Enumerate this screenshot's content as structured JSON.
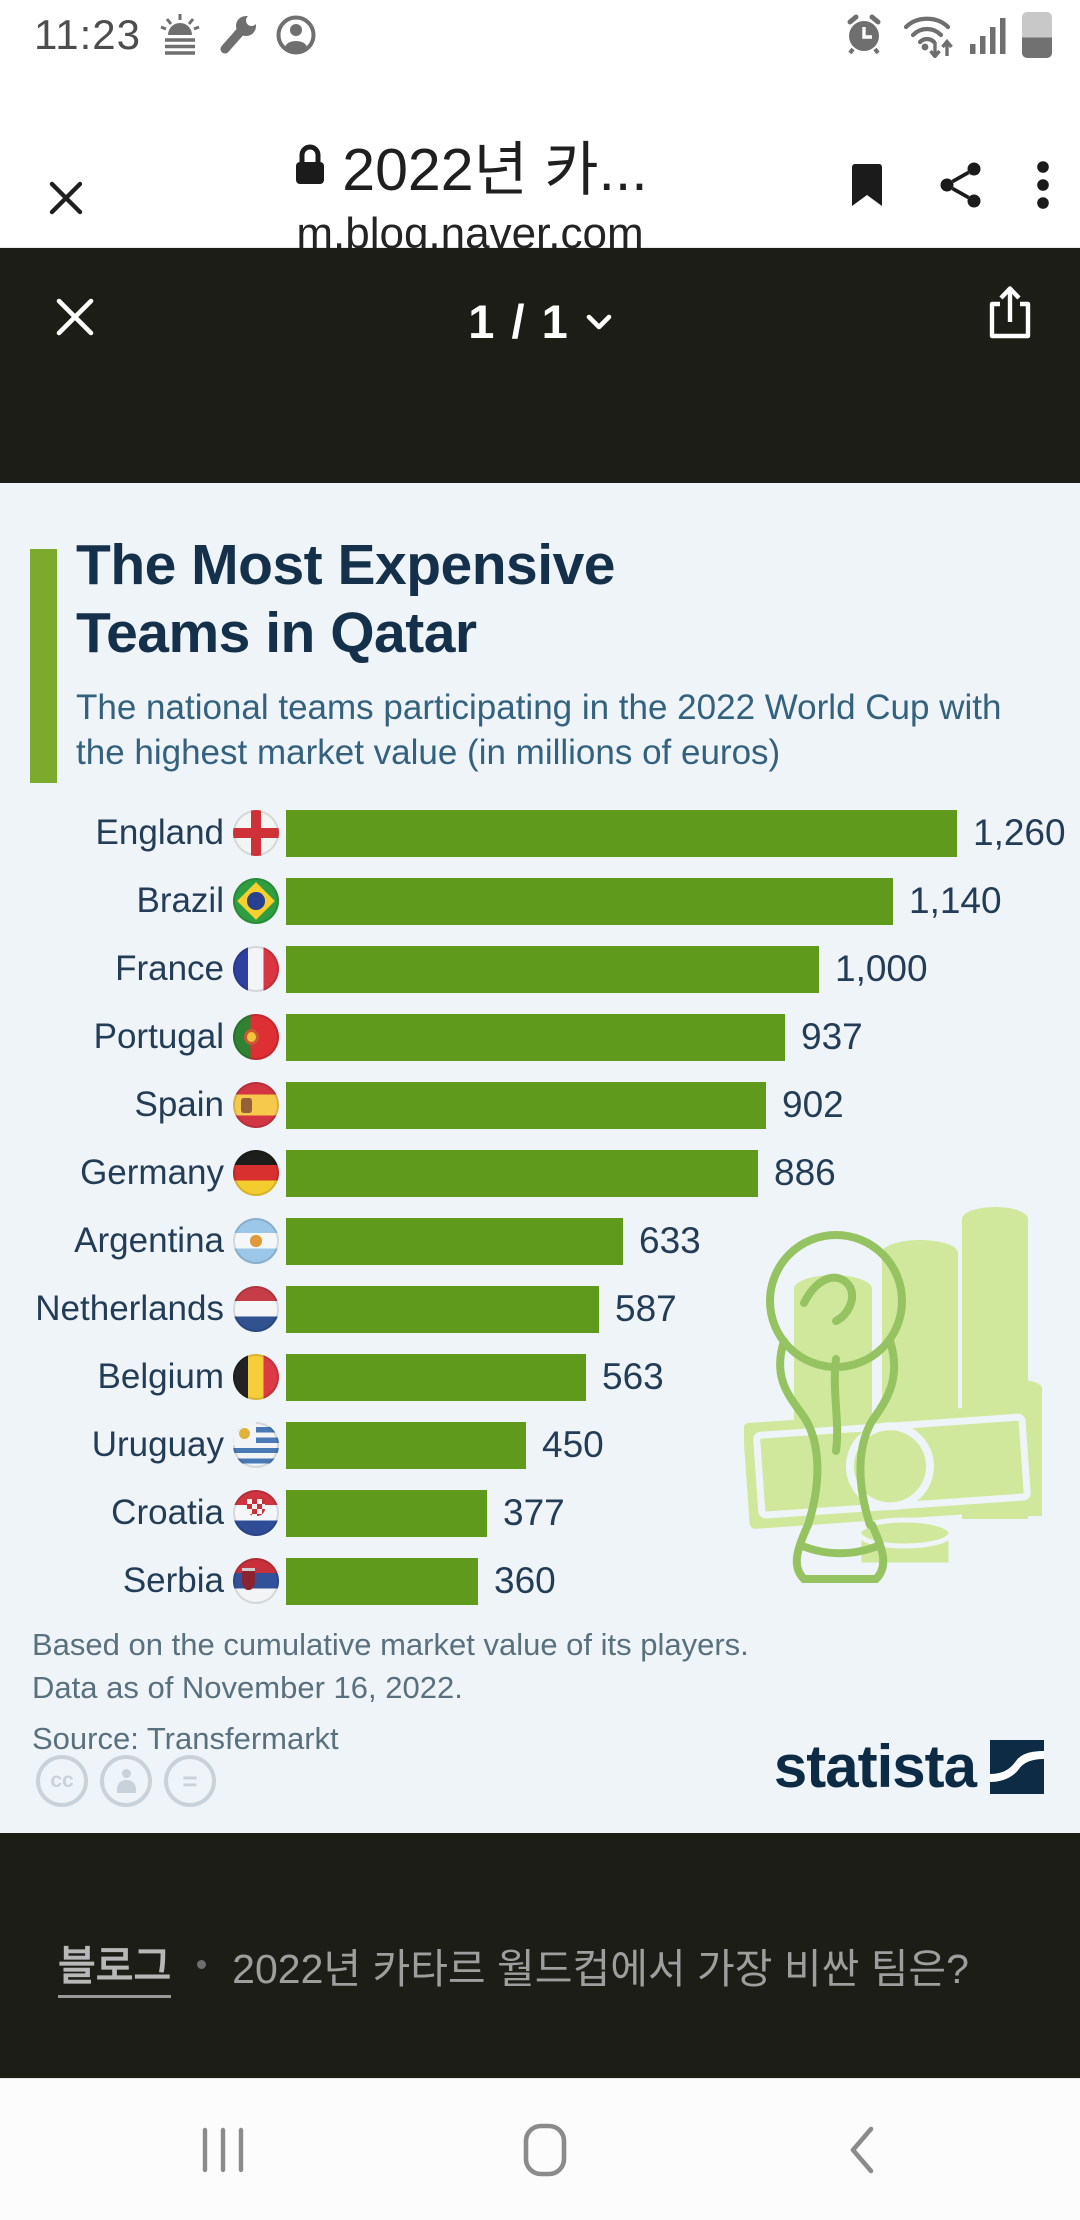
{
  "status_bar": {
    "time": "11:23",
    "left_icons": [
      "sunrise-weather",
      "wrench",
      "profile"
    ],
    "right_icons": [
      "alarm",
      "wifi-updown",
      "signal",
      "battery"
    ]
  },
  "browser_header": {
    "title": "2022년 카...",
    "url": "m.blog.naver.com",
    "icons": [
      "close",
      "lock",
      "bookmark",
      "share",
      "overflow-menu"
    ]
  },
  "viewer_header": {
    "page_indicator": "1 / 1",
    "icons": [
      "close",
      "page-dropdown",
      "upload-share"
    ]
  },
  "chart_data": {
    "type": "bar",
    "orientation": "horizontal",
    "title": "The Most Expensive Teams in Qatar",
    "title_lines": [
      "The Most Expensive",
      "Teams in Qatar"
    ],
    "subtitle": "The national teams participating in the 2022 World Cup with the highest market value (in millions of euros)",
    "categories": [
      "England",
      "Brazil",
      "France",
      "Portugal",
      "Spain",
      "Germany",
      "Argentina",
      "Netherlands",
      "Belgium",
      "Uruguay",
      "Croatia",
      "Serbia"
    ],
    "values": [
      1260,
      1140,
      1000,
      937,
      902,
      886,
      633,
      587,
      563,
      450,
      377,
      360
    ],
    "value_labels": [
      "1,260",
      "1,140",
      "1,000",
      "937",
      "902",
      "886",
      "633",
      "587",
      "563",
      "450",
      "377",
      "360"
    ],
    "flags": [
      "england",
      "brazil",
      "france",
      "portugal",
      "spain",
      "germany",
      "argentina",
      "netherlands",
      "belgium",
      "uruguay",
      "croatia",
      "serbia"
    ],
    "unit": "millions of euros",
    "xlim": [
      0,
      1260
    ],
    "grid": false,
    "legend": null,
    "footnote_lines": [
      "Based on the cumulative market value of its players.",
      "Data as of November 16, 2022."
    ],
    "source": "Source: Transfermarkt",
    "license_icons": [
      "cc",
      "attribution",
      "no-derivatives"
    ],
    "watermark": "world-cup-trophy-and-money",
    "colors": {
      "bar": "#609a1d",
      "accent": "#7caa2d",
      "title": "#15304b",
      "subtitle": "#33617e",
      "background": "#eff4f8",
      "watermark": "#cfe89c"
    }
  },
  "branding": {
    "logo_text": "statista"
  },
  "footer": {
    "category": "블로그",
    "title": "2022년 카타르 월드컵에서 가장 비싼 팀은?"
  },
  "nav_bar": {
    "icons": [
      "recents",
      "home",
      "back"
    ]
  }
}
